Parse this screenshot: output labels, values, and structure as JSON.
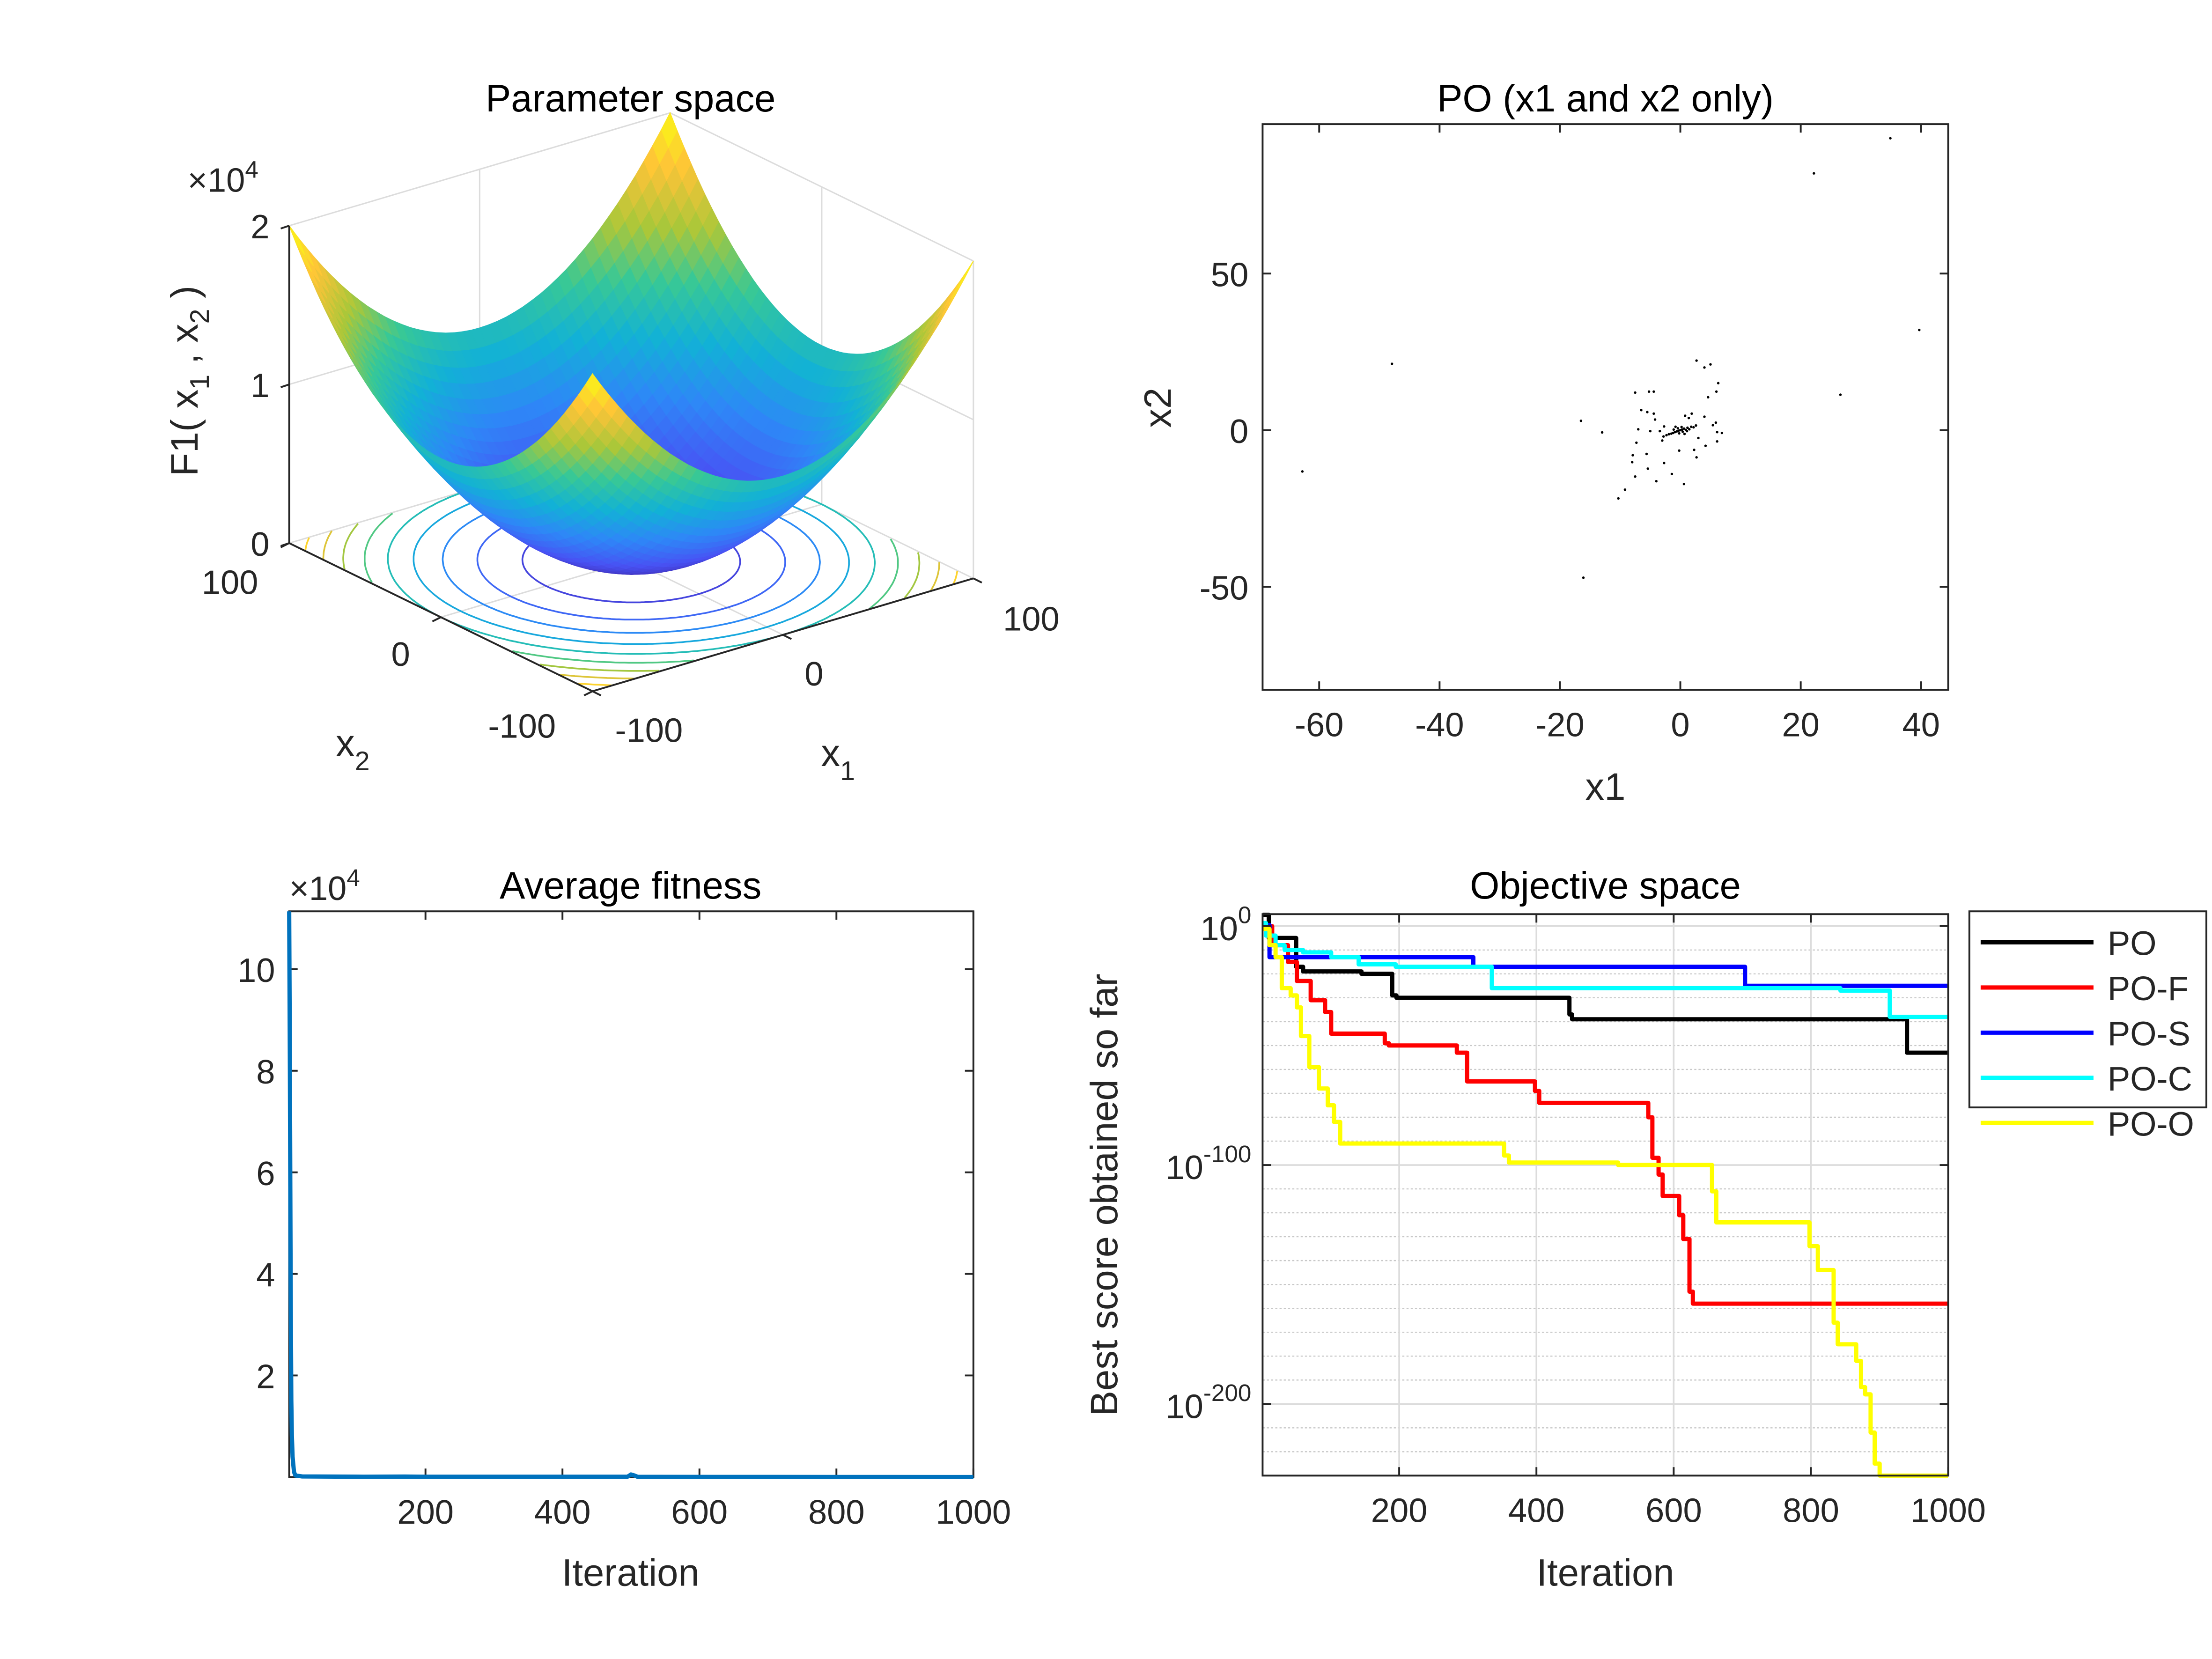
{
  "colors": {
    "axis": "#262626",
    "grid": "#dcdcdc",
    "avg_line": "#0072bd"
  },
  "chart_data": [
    {
      "type": "surface",
      "title": "Parameter space",
      "function": "x1^2 + x2^2",
      "x1lim": [
        -100,
        100
      ],
      "x2lim": [
        -100,
        100
      ],
      "zlim": [
        0,
        20000
      ],
      "colormap": "parula",
      "contour_levels": [
        2000,
        4000,
        6000,
        8000,
        10000,
        12000,
        14000,
        16000,
        18000,
        20000
      ],
      "zmultiplier": {
        "times": "×10",
        "exp": "4"
      },
      "zticks": [
        0,
        1,
        2
      ],
      "zticklabels": [
        "0",
        "1",
        "2"
      ],
      "x1ticklabels": [
        "-100",
        "0",
        "100"
      ],
      "x2ticklabels": [
        "100",
        "0",
        "-100"
      ],
      "xlabel": {
        "base": "x",
        "sub": "1"
      },
      "ylabel": {
        "base": "x",
        "sub": "2"
      },
      "zlabel": {
        "prefix": "F1( x",
        "sub1": "1",
        "mid": " , x",
        "sub2": "2",
        "suffix": " )"
      },
      "grid": true
    },
    {
      "type": "scatter",
      "title": "PO (x1 and x2 only)",
      "xlabel": "x1",
      "ylabel": "x2",
      "xlim": [
        -69.4,
        44.5
      ],
      "ylim": [
        -82.9,
        97.7
      ],
      "xticks": [
        -60,
        -40,
        -20,
        0,
        20,
        40
      ],
      "xticklabels": [
        "-60",
        "-40",
        "-20",
        "0",
        "20",
        "40"
      ],
      "yticks": [
        50,
        0,
        -50
      ],
      "yticklabels": [
        "50",
        "0",
        "-50"
      ],
      "color": "#000000",
      "points": [
        [
          34.9,
          93.2
        ],
        [
          22.2,
          82
        ],
        [
          39.7,
          32
        ],
        [
          -47.9,
          21.2
        ],
        [
          26.6,
          11.3
        ],
        [
          -62.8,
          -13.2
        ],
        [
          -16.1,
          -47.1
        ],
        [
          -16.5,
          3
        ],
        [
          -13,
          -0.7
        ],
        [
          -10.3,
          -21.8
        ],
        [
          -9.2,
          -19
        ],
        [
          2.7,
          22.2
        ],
        [
          4,
          20
        ],
        [
          5,
          21
        ],
        [
          6.3,
          15
        ],
        [
          6,
          12.3
        ],
        [
          4.6,
          10.5
        ],
        [
          -7.5,
          12
        ],
        [
          -5.2,
          12.3
        ],
        [
          -4.4,
          12.3
        ],
        [
          -6.5,
          6.4
        ],
        [
          -5.5,
          5.8
        ],
        [
          -4.4,
          5.3
        ],
        [
          -4.2,
          3.4
        ],
        [
          4,
          4.3
        ],
        [
          5.4,
          1.6
        ],
        [
          5.9,
          2.4
        ],
        [
          6.1,
          -0.6
        ],
        [
          6.9,
          -0.9
        ],
        [
          6.1,
          -3.6
        ],
        [
          4.2,
          -5
        ],
        [
          3,
          -2.5
        ],
        [
          2.3,
          -6.3
        ],
        [
          2.7,
          -8.7
        ],
        [
          -0.2,
          -6.5
        ],
        [
          0.6,
          -17.2
        ],
        [
          -1.4,
          -14
        ],
        [
          -2.7,
          -10.5
        ],
        [
          -4,
          -16.3
        ],
        [
          -5.4,
          -12.3
        ],
        [
          -5.6,
          -7.6
        ],
        [
          -7.3,
          -4
        ],
        [
          -7.9,
          -8
        ],
        [
          -8,
          -10.2
        ],
        [
          -7.5,
          -14.8
        ],
        [
          -7,
          0.3
        ],
        [
          -5,
          -0.3
        ],
        [
          -3.4,
          -0.3
        ],
        [
          -2.7,
          1.2
        ],
        [
          -3,
          -3.3
        ],
        [
          1.4,
          3.9
        ],
        [
          0.8,
          4.6
        ],
        [
          1.9,
          5.3
        ],
        [
          0,
          0
        ],
        [
          0.3,
          0.2
        ],
        [
          -0.3,
          -0.2
        ],
        [
          0.6,
          0.5
        ],
        [
          -0.6,
          -0.4
        ],
        [
          0.9,
          0.1
        ],
        [
          -0.9,
          -0.6
        ],
        [
          1.2,
          0.8
        ],
        [
          -1.2,
          -0.9
        ],
        [
          0.4,
          -0.5
        ],
        [
          -0.4,
          0.6
        ],
        [
          1.5,
          0.3
        ],
        [
          -1.5,
          -1.1
        ],
        [
          0.2,
          1
        ],
        [
          -0.2,
          -1
        ],
        [
          1.8,
          1.1
        ],
        [
          -1.9,
          -1.3
        ],
        [
          2.2,
          0.9
        ],
        [
          -2.3,
          -1.6
        ],
        [
          0.7,
          -1.2
        ],
        [
          -0.8,
          1.1
        ],
        [
          1.1,
          -0.3
        ],
        [
          -1.1,
          0.2
        ],
        [
          2.6,
          1.5
        ],
        [
          -2.8,
          -2
        ]
      ]
    },
    {
      "type": "line",
      "title": "Average fitness",
      "xlabel": "Iteration",
      "ylabel": "",
      "xlim": [
        1,
        1000
      ],
      "ylim": [
        0,
        111400
      ],
      "xticks": [
        200,
        400,
        600,
        800,
        1000
      ],
      "xticklabels": [
        "200",
        "400",
        "600",
        "800",
        "1000"
      ],
      "yticks": [
        20000,
        40000,
        60000,
        80000,
        100000
      ],
      "yticklabels": [
        "2",
        "4",
        "6",
        "8",
        "10"
      ],
      "ymultiplier": {
        "times": "×10",
        "exp": "4"
      },
      "series": [
        {
          "color": "#0072bd",
          "points": [
            [
              1,
              111400
            ],
            [
              2,
              80000
            ],
            [
              3,
              40000
            ],
            [
              4,
              15000
            ],
            [
              5,
              8200
            ],
            [
              6,
              4000
            ],
            [
              8,
              1000
            ],
            [
              10,
              300
            ],
            [
              20,
              100
            ],
            [
              110,
              60
            ],
            [
              170,
              80
            ],
            [
              200,
              50
            ],
            [
              495,
              60
            ],
            [
              500,
              500
            ],
            [
              505,
              300
            ],
            [
              510,
              30
            ],
            [
              1000,
              5
            ]
          ]
        }
      ]
    },
    {
      "type": "line",
      "title": "Objective space",
      "xlabel": "Iteration",
      "ylabel": "Best score obtained so far",
      "yscale": "log",
      "step": true,
      "xlim": [
        1,
        1000
      ],
      "ylim": [
        1e-230,
        100000.0
      ],
      "xticks": [
        200,
        400,
        600,
        800,
        1000
      ],
      "xticklabels": [
        "200",
        "400",
        "600",
        "800",
        "1000"
      ],
      "yticks": [
        1,
        1e-100,
        1e-200
      ],
      "yticklabels": [
        {
          "base": "10",
          "exp": "0"
        },
        {
          "base": "10",
          "exp": "-100"
        },
        {
          "base": "10",
          "exp": "-200"
        }
      ],
      "grid": true,
      "minor_grid": true,
      "legend_position": "outside-right",
      "series": [
        {
          "name": "PO",
          "color": "#000000",
          "points": [
            [
              1,
              50000.0
            ],
            [
              10,
              1e-05
            ],
            [
              50,
              1e-17
            ],
            [
              60,
              1e-19
            ],
            [
              145,
              1e-20
            ],
            [
              190,
              1e-29
            ],
            [
              196,
              1e-30
            ],
            [
              448,
              1e-37
            ],
            [
              452,
              1e-39
            ],
            [
              940,
              1e-53
            ],
            [
              1000,
              1e-53
            ]
          ]
        },
        {
          "name": "PO-F",
          "color": "#ff0000",
          "points": [
            [
              1,
              1
            ],
            [
              15,
              1e-08
            ],
            [
              38,
              1e-15
            ],
            [
              51,
              1e-23
            ],
            [
              71,
              1e-31
            ],
            [
              92,
              1e-36
            ],
            [
              101,
              1e-45
            ],
            [
              179,
              1e-49
            ],
            [
              185,
              1e-50
            ],
            [
              284,
              1e-53
            ],
            [
              299,
              1e-65
            ],
            [
              398,
              1e-69
            ],
            [
              404,
              1e-74
            ],
            [
              563,
              1e-80
            ],
            [
              569,
              1e-97
            ],
            [
              578,
              1e-104
            ],
            [
              584,
              1e-113
            ],
            [
              608,
              1e-121
            ],
            [
              614,
              1e-131
            ],
            [
              623,
              1e-153
            ],
            [
              628,
              1e-158
            ],
            [
              1000,
              1e-158
            ]
          ]
        },
        {
          "name": "PO-S",
          "color": "#0000ff",
          "points": [
            [
              1,
              3
            ],
            [
              11,
              1e-13
            ],
            [
              308,
              1e-17
            ],
            [
              704,
              1e-25
            ],
            [
              1000,
              1e-25
            ]
          ]
        },
        {
          "name": "PO-C",
          "color": "#00ffff",
          "points": [
            [
              1,
              20
            ],
            [
              6,
              0.0001
            ],
            [
              20,
              1e-08
            ],
            [
              33,
              1e-10
            ],
            [
              60,
              1e-11
            ],
            [
              101,
              1e-13
            ],
            [
              141,
              1e-16
            ],
            [
              195,
              1e-17
            ],
            [
              335,
              1e-26
            ],
            [
              843,
              1e-27
            ],
            [
              915,
              1e-38
            ],
            [
              1000,
              1e-38
            ]
          ]
        },
        {
          "name": "PO-O",
          "color": "#ffff00",
          "points": [
            [
              1,
              0.06
            ],
            [
              11,
              1e-08
            ],
            [
              20,
              1e-13
            ],
            [
              29,
              1e-26
            ],
            [
              42,
              1e-29
            ],
            [
              51,
              1e-34
            ],
            [
              57,
              1e-46
            ],
            [
              69,
              1e-59
            ],
            [
              83,
              1e-68
            ],
            [
              96,
              1e-75
            ],
            [
              105,
              1e-82
            ],
            [
              114,
              1e-91
            ],
            [
              353,
              1e-96
            ],
            [
              360,
              1e-99
            ],
            [
              519,
              1e-100
            ],
            [
              656,
              1e-111
            ],
            [
              662,
              1e-124
            ],
            [
              798,
              1e-134
            ],
            [
              810,
              1e-144
            ],
            [
              833,
              1e-166
            ],
            [
              839,
              1e-175
            ],
            [
              866,
              1e-182
            ],
            [
              873,
              1e-193
            ],
            [
              879,
              1e-196
            ],
            [
              887,
              1e-212
            ],
            [
              893,
              1e-225
            ],
            [
              900,
              1e-230
            ],
            [
              1000,
              1e-230
            ]
          ]
        }
      ]
    }
  ]
}
